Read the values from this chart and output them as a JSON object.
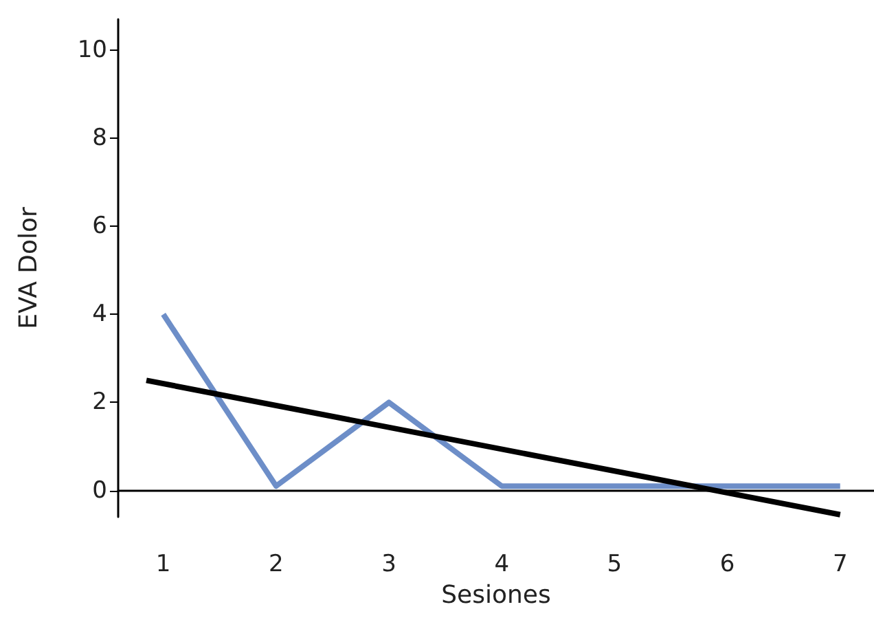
{
  "chart_data": {
    "type": "line",
    "xlabel": "Sesiones",
    "ylabel": "EVA Dolor",
    "xlim": [
      0.6,
      7.3
    ],
    "xticks": [
      1,
      2,
      3,
      4,
      5,
      6,
      7
    ],
    "ylim": [
      -0.6,
      10.7
    ],
    "yticks": [
      0,
      2,
      4,
      6,
      8,
      10
    ],
    "series": [
      {
        "color": "#6d8ec8",
        "x": [
          1,
          2,
          3,
          4,
          5,
          6,
          7
        ],
        "values": [
          4,
          0.1,
          2,
          0.1,
          0.1,
          0.1,
          0.1
        ]
      },
      {
        "color": "#000000",
        "x": [
          0.85,
          7
        ],
        "values": [
          2.5,
          -0.55
        ]
      }
    ],
    "grid": false,
    "marker": "none",
    "line_style": "solid"
  }
}
